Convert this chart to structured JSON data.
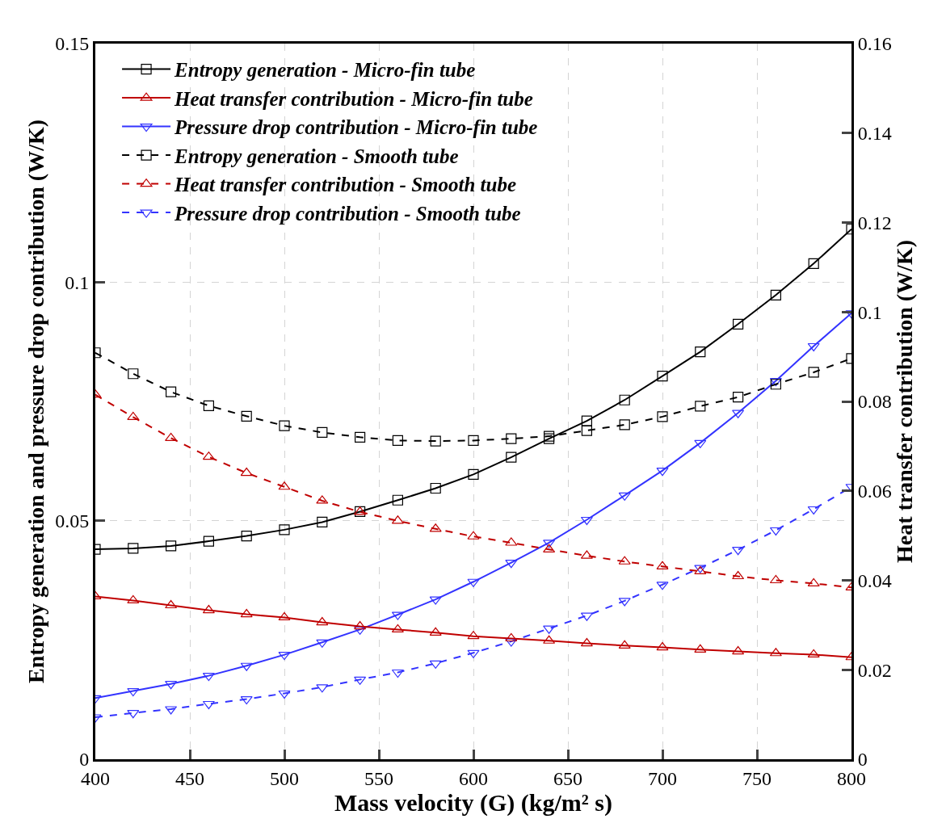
{
  "chart_data": {
    "type": "line",
    "xlabel": "Mass velocity (G) (kg/m² s)",
    "ylabel": "Entropy generation and pressure drop contribution (W/K)",
    "y2label": "Heat transfer contribution (W/K)",
    "x": [
      400,
      420,
      440,
      460,
      480,
      500,
      520,
      540,
      560,
      580,
      600,
      620,
      640,
      660,
      680,
      700,
      720,
      740,
      760,
      780,
      800
    ],
    "xlim": [
      400,
      800
    ],
    "xticks": [
      400,
      450,
      500,
      550,
      600,
      650,
      700,
      750,
      800
    ],
    "ylim": [
      0,
      0.15
    ],
    "yticks": [
      0,
      0.05,
      0.1,
      0.15
    ],
    "y2lim": [
      0,
      0.16
    ],
    "y2ticks": [
      0,
      0.02,
      0.04,
      0.06,
      0.08,
      0.1,
      0.12,
      0.14,
      0.16
    ],
    "grid": true,
    "legend": "top left",
    "series": [
      {
        "name": "Entropy generation - Micro-fin tube",
        "color": "#000000",
        "marker": "square",
        "line_style": "solid",
        "values": [
          0.044,
          0.0442,
          0.0447,
          0.0457,
          0.0468,
          0.0481,
          0.0497,
          0.0519,
          0.0543,
          0.0568,
          0.0597,
          0.0633,
          0.0672,
          0.0709,
          0.0753,
          0.0803,
          0.0854,
          0.0912,
          0.0973,
          0.1039,
          0.1111
        ]
      },
      {
        "name": "Heat transfer contribution - Micro-fin tube",
        "color": "#c00000",
        "marker": "triangle",
        "line_style": "solid",
        "axis": "y2",
        "values": [
          0.0364,
          0.0355,
          0.0344,
          0.0333,
          0.0324,
          0.0317,
          0.0306,
          0.0297,
          0.029,
          0.0283,
          0.0275,
          0.027,
          0.0265,
          0.0259,
          0.0254,
          0.025,
          0.0245,
          0.0241,
          0.0237,
          0.0234,
          0.0228
        ]
      },
      {
        "name": "Pressure drop contribution - Micro-fin tube",
        "color": "#3333ff",
        "marker": "triangle-down",
        "line_style": "solid",
        "values": [
          0.0128,
          0.0143,
          0.0158,
          0.0175,
          0.0196,
          0.0219,
          0.0245,
          0.0272,
          0.0303,
          0.0335,
          0.0372,
          0.0412,
          0.0454,
          0.0502,
          0.0553,
          0.0605,
          0.0663,
          0.0726,
          0.0793,
          0.0866,
          0.0935
        ]
      },
      {
        "name": "Entropy generation - Smooth tube",
        "color": "#000000",
        "marker": "square",
        "line_style": "dashed",
        "values": [
          0.0852,
          0.0808,
          0.077,
          0.0741,
          0.0719,
          0.0699,
          0.0685,
          0.0675,
          0.0668,
          0.0667,
          0.0668,
          0.0672,
          0.0677,
          0.0689,
          0.0701,
          0.0718,
          0.074,
          0.0759,
          0.0786,
          0.0811,
          0.084
        ]
      },
      {
        "name": "Heat transfer contribution - Smooth tube",
        "color": "#c00000",
        "marker": "triangle",
        "line_style": "dashed",
        "axis": "y2",
        "values": [
          0.0815,
          0.0765,
          0.0718,
          0.0676,
          0.064,
          0.0609,
          0.0578,
          0.0553,
          0.0533,
          0.0515,
          0.0498,
          0.0484,
          0.0469,
          0.0455,
          0.0442,
          0.0431,
          0.042,
          0.0409,
          0.04,
          0.0393,
          0.0384
        ]
      },
      {
        "name": "Pressure drop contribution - Smooth tube",
        "color": "#3333ff",
        "marker": "triangle-down",
        "line_style": "dashed",
        "values": [
          0.0088,
          0.0097,
          0.0105,
          0.0116,
          0.0126,
          0.0138,
          0.0151,
          0.0167,
          0.0182,
          0.0201,
          0.0223,
          0.0247,
          0.0274,
          0.0301,
          0.0332,
          0.0366,
          0.0401,
          0.0439,
          0.048,
          0.0524,
          0.0571
        ]
      }
    ]
  }
}
